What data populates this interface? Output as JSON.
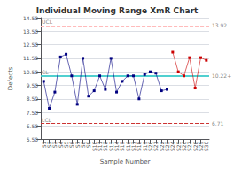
{
  "chart_data": {
    "type": "line",
    "title": "Individual Moving Range XmR Chart",
    "xlabel": "Sample Number",
    "ylabel": "Defects",
    "categories": [
      "S1",
      "S2",
      "S3",
      "S4",
      "S5",
      "S6",
      "S7",
      "S8",
      "S9",
      "S10",
      "S11",
      "S12",
      "S13",
      "S14",
      "S15",
      "S16",
      "S17",
      "S18",
      "S19",
      "S20",
      "S21",
      "S22",
      "S23",
      "S24",
      "S25",
      "S26",
      "S27",
      "S28",
      "S29",
      "S30"
    ],
    "series": [
      {
        "color": "#000080",
        "marker": "square",
        "line_style": "solid",
        "values": [
          9.8,
          7.8,
          9.0,
          11.6,
          11.8,
          10.2,
          8.1,
          11.5,
          8.7,
          9.1,
          10.2,
          9.2,
          11.5,
          9.0,
          9.8,
          10.2,
          10.2,
          8.5,
          10.3,
          10.5,
          10.4,
          9.1,
          9.2,
          null,
          null,
          null,
          null,
          null,
          null,
          null
        ]
      },
      {
        "color": "#cc0000",
        "marker": "square",
        "line_style": "solid",
        "values": [
          null,
          null,
          null,
          null,
          null,
          null,
          null,
          null,
          null,
          null,
          null,
          null,
          null,
          null,
          null,
          null,
          null,
          null,
          null,
          null,
          null,
          null,
          null,
          11.95,
          10.5,
          10.2,
          11.55,
          9.3,
          11.55,
          11.35
        ]
      }
    ],
    "reference_lines": [
      {
        "label": "UCL",
        "value": 13.92,
        "color": "#ffbbbb",
        "line_style": "dashed"
      },
      {
        "label": "CL",
        "value": 10.22,
        "value_label": "10.22+",
        "color": "#44cccc",
        "line_style": "solid"
      },
      {
        "label": "LCL",
        "value": 6.71,
        "color": "#cc3333",
        "line_style": "dashed"
      }
    ],
    "ylim": [
      5.5,
      14.5
    ],
    "yticks": [
      {
        "value": 5.5,
        "label": "5.50"
      },
      {
        "value": 6.5,
        "label": "6.50"
      },
      {
        "value": 7.5,
        "label": "7.50"
      },
      {
        "value": 8.5,
        "label": "8.50"
      },
      {
        "value": 9.5,
        "label": "9.50"
      },
      {
        "value": 10.5,
        "label": "10.50"
      },
      {
        "value": 11.5,
        "label": "11.50"
      },
      {
        "value": 12.5,
        "label": "12.50"
      },
      {
        "value": 13.5,
        "label": "13.50"
      },
      {
        "value": 14.5,
        "label": "14.50"
      }
    ],
    "grid": true
  }
}
